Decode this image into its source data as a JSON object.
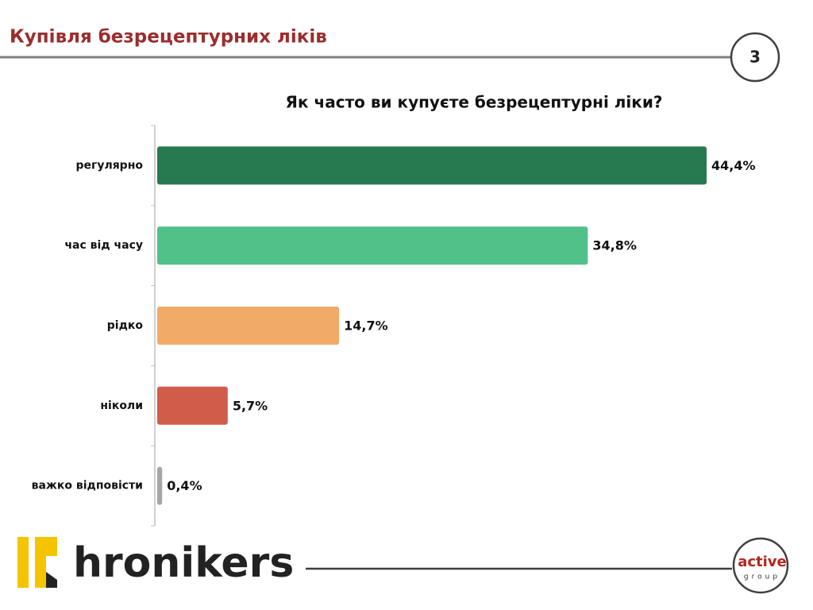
{
  "page": {
    "title": "Купівля безрецептурних ліків",
    "number": "3"
  },
  "chart_data": {
    "type": "hbar",
    "title": "Як часто ви купуєте безрецептурні ліки?",
    "categories": [
      "регулярно",
      "час від часу",
      "рідко",
      "ніколи",
      "важко відповісти"
    ],
    "values": [
      44.4,
      34.8,
      14.7,
      5.7,
      0.4
    ],
    "value_labels": [
      "44,4%",
      "34,8%",
      "14,7%",
      "5,7%",
      "0,4%"
    ],
    "colors": [
      "#277a4f",
      "#52c089",
      "#f2aa68",
      "#d15c4a",
      "#a6a6a6"
    ]
  },
  "footer": {
    "brand": "hronikers",
    "partner": "active",
    "partner_sub": "group"
  }
}
